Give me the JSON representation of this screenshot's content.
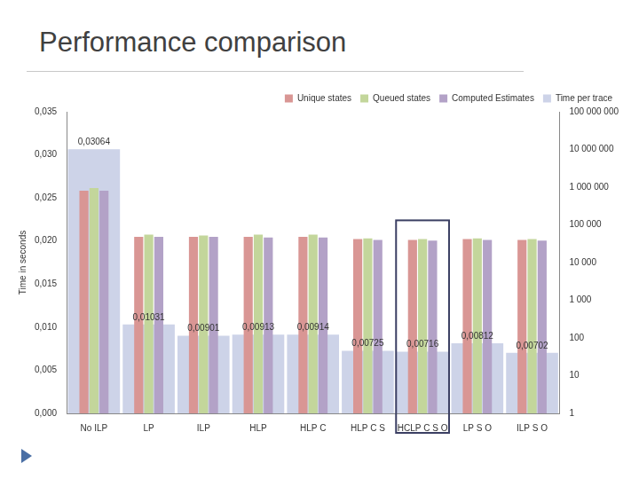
{
  "chart_data": {
    "type": "bar",
    "title": "Performance comparison",
    "ylabel": "Time in seconds",
    "categories": [
      "No ILP",
      "LP",
      "ILP",
      "HLP",
      "HLP C",
      "HLP C S",
      "HCLP C S O",
      "LP S O",
      "ILP S O"
    ],
    "series": [
      {
        "name": "Time per trace",
        "color": "#cdd3e8",
        "axis": "y",
        "data_labels": true,
        "values": [
          0.03064,
          0.01031,
          0.00901,
          0.00913,
          0.00914,
          0.00725,
          0.00716,
          0.00812,
          0.00702
        ],
        "value_labels": [
          "0,03064",
          "0,01031",
          "0,00901",
          "0,00913",
          "0,00914",
          "0,00725",
          "0,00716",
          "0,00812",
          "0,00702"
        ]
      },
      {
        "name": "Unique states",
        "color": "#d99694",
        "axis": "y2",
        "values": [
          800000,
          48000,
          48000,
          48000,
          48000,
          42000,
          40000,
          42000,
          40000
        ]
      },
      {
        "name": "Queued states",
        "color": "#c3d69b",
        "axis": "y2",
        "values": [
          950000,
          55000,
          52000,
          55000,
          55000,
          44000,
          42000,
          44000,
          42000
        ]
      },
      {
        "name": "Computed Estimates",
        "color": "#b3a2c7",
        "axis": "y2",
        "values": [
          800000,
          48000,
          48000,
          46000,
          46000,
          40000,
          38000,
          40000,
          38000
        ]
      }
    ],
    "ylim": [
      0,
      0.035
    ],
    "yticks": [
      {
        "value": 0,
        "label": "0,000"
      },
      {
        "value": 0.005,
        "label": "0,005"
      },
      {
        "value": 0.01,
        "label": "0,010"
      },
      {
        "value": 0.015,
        "label": "0,015"
      },
      {
        "value": 0.02,
        "label": "0,020"
      },
      {
        "value": 0.025,
        "label": "0,025"
      },
      {
        "value": 0.03,
        "label": "0,030"
      },
      {
        "value": 0.035,
        "label": "0,035"
      }
    ],
    "y2lim": [
      1,
      100000000
    ],
    "y2ticks": [
      1,
      10,
      100,
      {
        "value": 1000,
        "label": "1 000"
      },
      {
        "value": 10000,
        "label": "10 000"
      },
      {
        "value": 100000,
        "label": "100 000"
      },
      {
        "value": 1000000,
        "label": "1 000 000"
      },
      {
        "value": 10000000,
        "label": "10 000 000"
      },
      {
        "value": 100000000,
        "label": "100 000 000"
      }
    ],
    "log": "y2",
    "grid": false,
    "legend": "top-right"
  }
}
